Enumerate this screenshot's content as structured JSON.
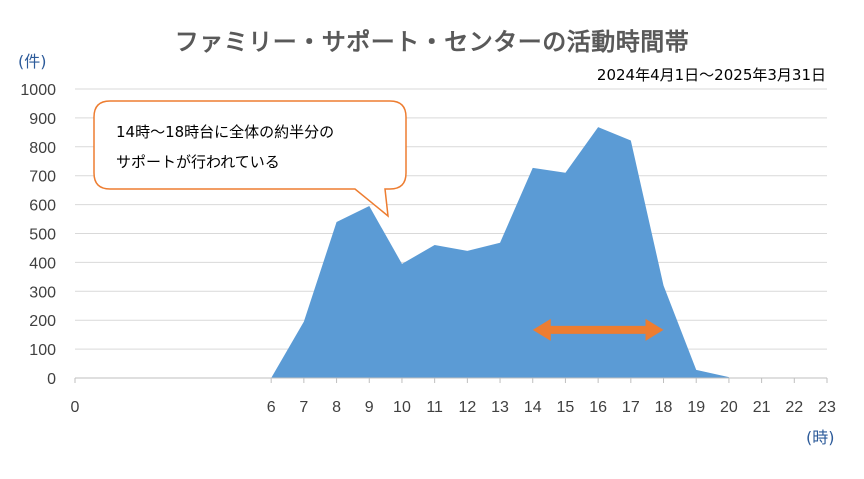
{
  "title": "ファミリー・サポート・センターの活動時間帯",
  "period": "2024年4月1日～2025年3月31日",
  "callout": {
    "line1": "14時～18時台に全体の約半分の",
    "line2": "サポートが行われている"
  },
  "colors": {
    "area": "#5b9bd5",
    "arrow": "#ed7d31",
    "callout_border": "#ed7d31",
    "title": "#595959",
    "unit_label": "#2d5b9a"
  },
  "chart_data": {
    "type": "area",
    "title": "ファミリー・サポート・センターの活動時間帯",
    "subtitle": "2024年4月1日～2025年3月31日",
    "xlabel": "(時)",
    "ylabel": "(件)",
    "xlim": [
      0,
      23
    ],
    "ylim": [
      0,
      1000
    ],
    "x_ticks": [
      "0",
      "6",
      "7",
      "8",
      "9",
      "10",
      "11",
      "12",
      "13",
      "14",
      "15",
      "16",
      "17",
      "18",
      "19",
      "20",
      "21",
      "22",
      "23"
    ],
    "y_ticks": [
      "0",
      "100",
      "200",
      "300",
      "400",
      "500",
      "600",
      "700",
      "800",
      "900",
      "1000"
    ],
    "grid": true,
    "x": [
      6,
      7,
      8,
      9,
      10,
      11,
      12,
      13,
      14,
      15,
      16,
      17,
      18,
      19,
      20
    ],
    "values": [
      0,
      195,
      540,
      595,
      395,
      460,
      440,
      468,
      727,
      710,
      868,
      822,
      320,
      28,
      3
    ],
    "annotation_arrow": {
      "from": 14,
      "to": 18,
      "value": 170
    }
  }
}
